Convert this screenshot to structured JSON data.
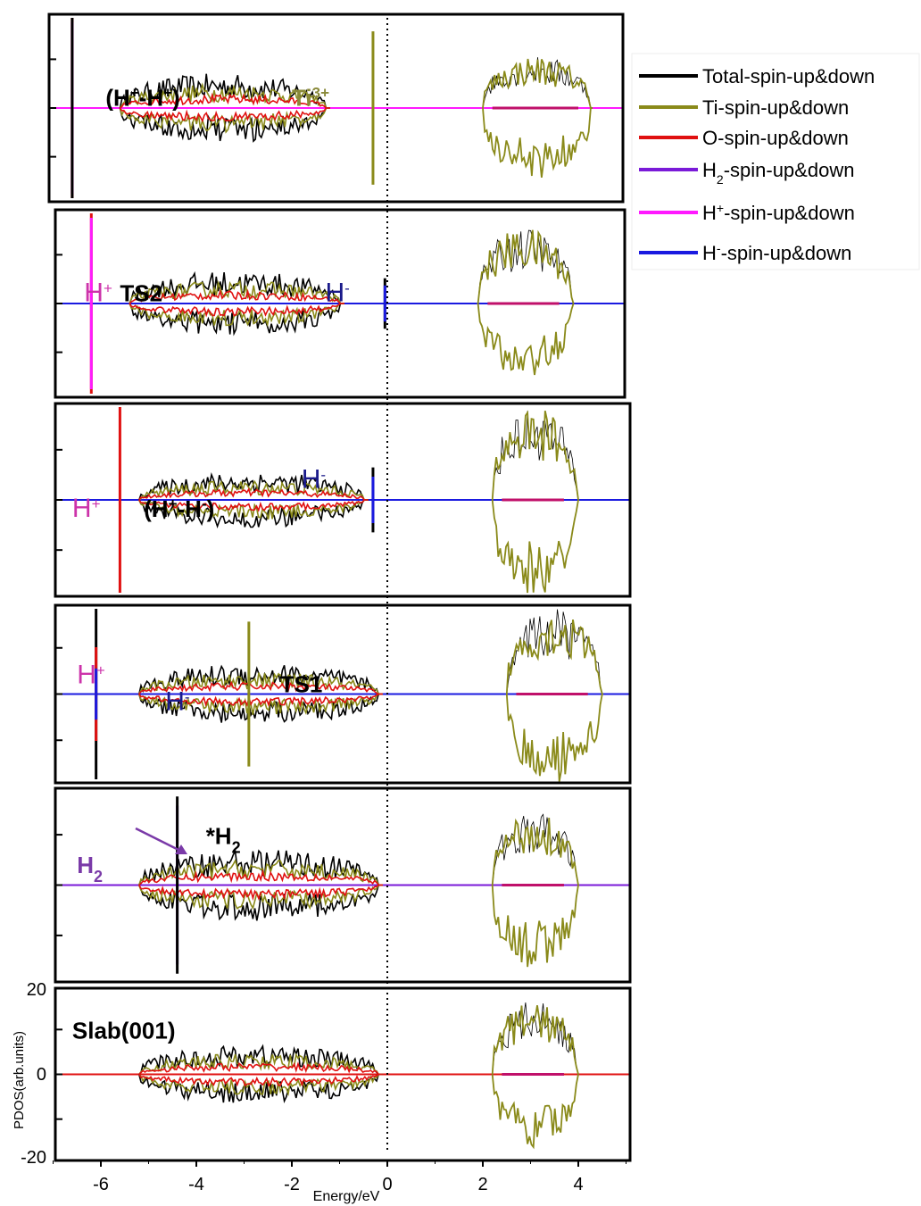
{
  "chart_data": {
    "type": "line",
    "xlabel": "Energy/eV",
    "ylabel": "PDOS(arb.units)",
    "xlim": [
      -7,
      5
    ],
    "x_ticks": [
      "-6",
      "-4",
      "-2",
      "0",
      "2",
      "4"
    ],
    "fermi_level": 0,
    "bottom_yticks": [
      "20",
      "0",
      "-20"
    ],
    "legend": {
      "placement": "top-right",
      "entries": [
        {
          "name": "Total-spin-up&down",
          "sub": "",
          "sup": "",
          "rest": "",
          "color": "#000000"
        },
        {
          "name": "Ti-spin-up&down",
          "sub": "",
          "sup": "",
          "rest": "",
          "color": "#8a8a1a"
        },
        {
          "name": "O-spin-up&down",
          "sub": "",
          "sup": "",
          "rest": "",
          "color": "#e01010"
        },
        {
          "name": "H",
          "sub": "2",
          "sup": "",
          "rest": "-spin-up&down",
          "color": "#7a1ad8"
        },
        {
          "name": "H",
          "sub": "",
          "sup": "+",
          "rest": "-spin-up&down",
          "color": "#ff1aff"
        },
        {
          "name": "H",
          "sub": "",
          "sup": "-",
          "rest": "-spin-up&down",
          "color": "#1a1ae0"
        }
      ]
    },
    "panels": [
      {
        "id": "p1",
        "spikes": [
          {
            "x": -6.6,
            "amp": 1.0,
            "color": "#e01010"
          },
          {
            "x": -6.6,
            "amp": 0.95,
            "color": "#ff1aff"
          },
          {
            "x": -6.6,
            "amp": 1.0,
            "color": "#000000"
          },
          {
            "x": -0.3,
            "amp": 0.85,
            "color": "#8a8a1a"
          }
        ],
        "vb_range": [
          -5.6,
          -1.2
        ],
        "vb_amp": 0.32,
        "cb_range": [
          2.0,
          4.3
        ],
        "cb_amp": 0.55,
        "cb_down_amp": 0.75,
        "baseline_color": "#ff1aff",
        "labels": [
          {
            "text": "(H",
            "sup": "+",
            "mid": "-H",
            "sup2": "+",
            "end": ")",
            "x": -5.9,
            "ytext": 0.55,
            "color": "#000000",
            "bold": true
          },
          {
            "text": "Ti",
            "sup": "3+",
            "mid": "",
            "sup2": "",
            "end": "",
            "x": -2.0,
            "ytext": 0.55,
            "color": "#8a8a3a",
            "bold": true
          }
        ]
      },
      {
        "id": "p2",
        "spikes": [
          {
            "x": -6.2,
            "amp": 1.0,
            "color": "#e01010"
          },
          {
            "x": -6.2,
            "amp": 0.95,
            "color": "#ff1aff"
          },
          {
            "x": -0.05,
            "amp": 0.28,
            "color": "#000000"
          },
          {
            "x": -0.05,
            "amp": 0.2,
            "color": "#1a1ae0"
          }
        ],
        "vb_range": [
          -5.4,
          -0.9
        ],
        "vb_amp": 0.3,
        "cb_range": [
          1.9,
          3.9
        ],
        "cb_amp": 0.8,
        "cb_down_amp": 0.8,
        "baseline_color": "#1a1ae0",
        "labels": [
          {
            "text": "H",
            "sup": "+",
            "mid": "",
            "sup2": "",
            "end": "",
            "x": -6.35,
            "ytext": 0.55,
            "color": "#cc33aa",
            "bold": false
          },
          {
            "text": "TS2",
            "sup": "",
            "mid": "",
            "sup2": "",
            "end": "",
            "x": -5.6,
            "ytext": 0.55,
            "color": "#000000",
            "bold": true
          },
          {
            "text": "H",
            "sup": "-",
            "mid": "",
            "sup2": "",
            "end": "",
            "x": -1.3,
            "ytext": 0.55,
            "color": "#1a1a8a",
            "bold": false
          }
        ]
      },
      {
        "id": "p3",
        "spikes": [
          {
            "x": -5.6,
            "amp": 1.0,
            "color": "#e01010"
          },
          {
            "x": -0.3,
            "amp": 0.35,
            "color": "#000000"
          },
          {
            "x": -0.3,
            "amp": 0.25,
            "color": "#1a1ae0"
          }
        ],
        "vb_range": [
          -5.2,
          -0.4
        ],
        "vb_amp": 0.25,
        "cb_range": [
          2.2,
          4.0
        ],
        "cb_amp": 0.95,
        "cb_down_amp": 1.0,
        "baseline_color": "#1a1ae0",
        "labels": [
          {
            "text": "H",
            "sup": "+",
            "mid": "",
            "sup2": "",
            "end": "",
            "x": -6.6,
            "ytext": 0.45,
            "color": "#cc33aa",
            "bold": false
          },
          {
            "text": "(H",
            "sup": "+",
            "mid": "-H",
            "sup2": "-",
            "end": ")",
            "x": -5.1,
            "ytext": 0.45,
            "color": "#000000",
            "bold": true
          },
          {
            "text": "H",
            "sup": "-",
            "mid": "",
            "sup2": "",
            "end": "",
            "x": -1.8,
            "ytext": 0.6,
            "color": "#1a1a8a",
            "bold": false
          }
        ]
      },
      {
        "id": "p4",
        "spikes": [
          {
            "x": -6.1,
            "amp": 1.0,
            "color": "#000000"
          },
          {
            "x": -6.1,
            "amp": 0.55,
            "color": "#e01010"
          },
          {
            "x": -6.1,
            "amp": 0.3,
            "color": "#1a1ae0"
          },
          {
            "x": -2.9,
            "amp": 0.85,
            "color": "#8a8a1a"
          }
        ],
        "vb_range": [
          -5.2,
          -0.1
        ],
        "vb_amp": 0.3,
        "cb_range": [
          2.5,
          4.5
        ],
        "cb_amp": 0.95,
        "cb_down_amp": 1.0,
        "baseline_color": "#1a1ae0",
        "labels": [
          {
            "text": "H",
            "sup": "+",
            "mid": "",
            "sup2": "",
            "end": "",
            "x": -6.5,
            "ytext": 0.6,
            "color": "#cc33aa",
            "bold": false
          },
          {
            "text": "H",
            "sup": "-",
            "mid": "",
            "sup2": "",
            "end": "",
            "x": -4.65,
            "ytext": 0.45,
            "color": "#1a1a8a",
            "bold": false
          },
          {
            "text": "TS1",
            "sup": "",
            "mid": "",
            "sup2": "",
            "end": "",
            "x": -2.25,
            "ytext": 0.55,
            "color": "#000000",
            "bold": true
          }
        ]
      },
      {
        "id": "p5",
        "spikes": [
          {
            "x": -4.4,
            "amp": 0.85,
            "color": "#7a1ad8"
          },
          {
            "x": -4.4,
            "amp": 0.95,
            "color": "#000000"
          }
        ],
        "vb_range": [
          -5.2,
          -0.1
        ],
        "vb_amp": 0.32,
        "cb_range": [
          2.2,
          4.0
        ],
        "cb_amp": 0.75,
        "cb_down_amp": 0.85,
        "baseline_color": "#7a1ad8",
        "labels": [
          {
            "text": "H",
            "sub": "2",
            "sup": "",
            "mid": "",
            "sup2": "",
            "end": "",
            "x": -6.5,
            "ytext": 0.6,
            "color": "#7a3aa8",
            "bold": true
          },
          {
            "text": "*H",
            "sub": "2",
            "sup": "",
            "mid": "",
            "sup2": "",
            "end": "",
            "x": -3.8,
            "ytext": 0.75,
            "color": "#000000",
            "bold": true
          }
        ]
      },
      {
        "id": "p6",
        "spikes": [],
        "vb_range": [
          -5.2,
          -0.1
        ],
        "vb_amp": 0.3,
        "cb_range": [
          2.2,
          4.0
        ],
        "cb_amp": 0.85,
        "cb_down_amp": 0.85,
        "baseline_color": "#e01010",
        "labels": [
          {
            "text": "Slab(001)",
            "sup": "",
            "mid": "",
            "sup2": "",
            "end": "",
            "x": -6.6,
            "ytext": 0.75,
            "color": "#000000",
            "bold": true
          }
        ]
      }
    ]
  }
}
